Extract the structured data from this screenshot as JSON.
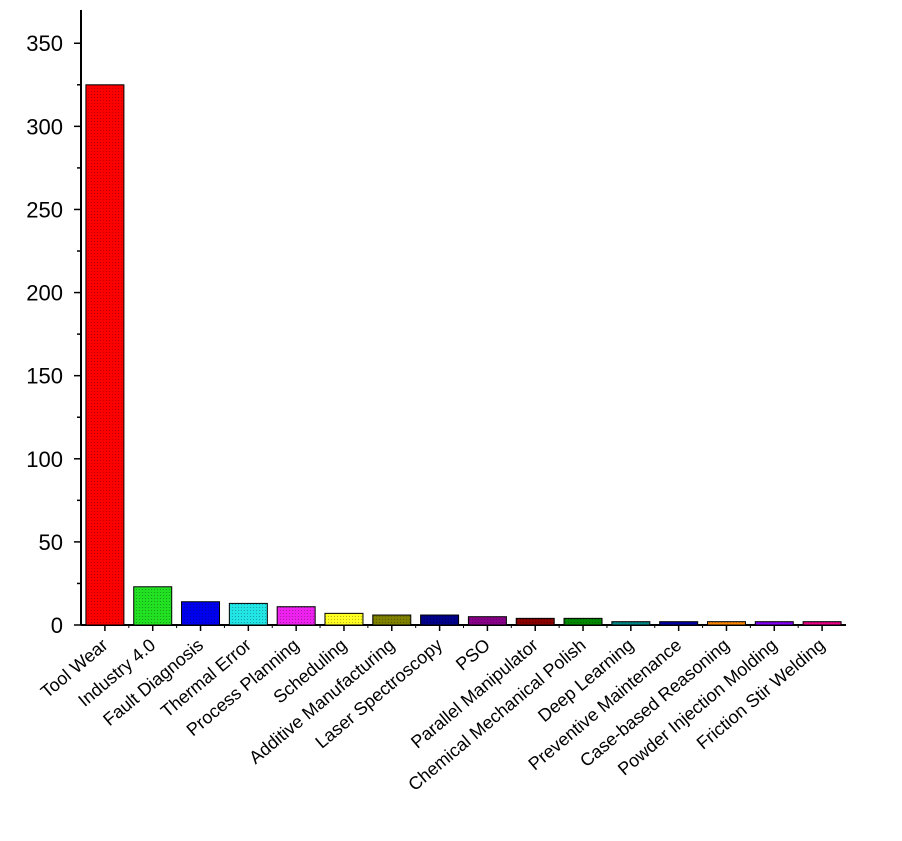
{
  "chart_data": {
    "type": "bar",
    "title": "",
    "xlabel": "",
    "ylabel": "",
    "ylim": [
      0,
      370
    ],
    "yticks": [
      0,
      50,
      100,
      150,
      200,
      250,
      300,
      350
    ],
    "grid": false,
    "legend": "none",
    "categories": [
      "Tool Wear",
      "Industry 4.0",
      "Fault Diagnosis",
      "Thermal Error",
      "Process Planning",
      "Scheduling",
      "Additive Manufacturing",
      "Laser Spectroscopy",
      "PSO",
      "Parallel Manipulator",
      "Chemical Mechanical Polish",
      "Deep Learning",
      "Preventive Maintenance",
      "Case-based Reasoning",
      "Powder Injection Molding",
      "Friction Stir Welding"
    ],
    "values": [
      325,
      23,
      14,
      13,
      11,
      7,
      6,
      6,
      5,
      4,
      4,
      2,
      2,
      2,
      2,
      2
    ],
    "colors": [
      "#ff0000",
      "#22e022",
      "#0000ee",
      "#22e5e5",
      "#ee22ee",
      "#ffff22",
      "#808000",
      "#000088",
      "#880088",
      "#880000",
      "#008800",
      "#008888",
      "#0000aa",
      "#ff8800",
      "#8800ff",
      "#ee0088"
    ]
  }
}
